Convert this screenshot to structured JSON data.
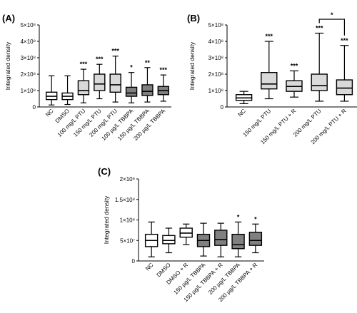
{
  "chart_data": [
    {
      "panel": "(A)",
      "type": "box",
      "ylabel": "Integrated density",
      "ylim": [
        0,
        500000000
      ],
      "yticks": [
        0,
        100000000,
        200000000,
        300000000,
        400000000,
        500000000
      ],
      "ytick_labels": [
        "0",
        "1×10⁸",
        "2×10⁸",
        "3×10⁸",
        "4×10⁸",
        "5×10⁸"
      ],
      "categories": [
        "NC",
        "DMSO",
        "100 mg/L PTU",
        "150 mg/L PTU",
        "200 mg/L PTU",
        "100 µg/L TBBPA",
        "150 µg/L TBBPA",
        "200 µg/L TBBPA"
      ],
      "boxes": [
        {
          "min": 12000000,
          "q1": 45000000,
          "median": 65000000,
          "q3": 90000000,
          "max": 190000000,
          "fill": "#ffffff",
          "sig": ""
        },
        {
          "min": 15000000,
          "q1": 45000000,
          "median": 65000000,
          "q3": 85000000,
          "max": 190000000,
          "fill": "#ffffff",
          "sig": ""
        },
        {
          "min": 25000000,
          "q1": 75000000,
          "median": 100000000,
          "q3": 160000000,
          "max": 230000000,
          "fill": "#d9d9d9",
          "sig": "***"
        },
        {
          "min": 50000000,
          "q1": 100000000,
          "median": 140000000,
          "q3": 200000000,
          "max": 260000000,
          "fill": "#d9d9d9",
          "sig": "***"
        },
        {
          "min": 30000000,
          "q1": 90000000,
          "median": 135000000,
          "q3": 200000000,
          "max": 310000000,
          "fill": "#d9d9d9",
          "sig": "***"
        },
        {
          "min": 25000000,
          "q1": 65000000,
          "median": 85000000,
          "q3": 120000000,
          "max": 210000000,
          "fill": "#808080",
          "sig": "*"
        },
        {
          "min": 30000000,
          "q1": 70000000,
          "median": 95000000,
          "q3": 135000000,
          "max": 240000000,
          "fill": "#808080",
          "sig": "**"
        },
        {
          "min": 35000000,
          "q1": 75000000,
          "median": 100000000,
          "q3": 125000000,
          "max": 195000000,
          "fill": "#808080",
          "sig": "***"
        }
      ]
    },
    {
      "panel": "(B)",
      "type": "box",
      "ylabel": "Integrated density",
      "ylim": [
        0,
        500000000
      ],
      "yticks": [
        0,
        100000000,
        200000000,
        300000000,
        400000000,
        500000000
      ],
      "ytick_labels": [
        "0",
        "1×10⁸",
        "2×10⁸",
        "3×10⁸",
        "4×10⁸",
        "5×10⁸"
      ],
      "categories": [
        "NC",
        "150 mg/L PTU",
        "150 mg/L PTU + R",
        "200 mg/L PTU",
        "200 mg/L PTU + R"
      ],
      "boxes": [
        {
          "min": 20000000,
          "q1": 40000000,
          "median": 55000000,
          "q3": 75000000,
          "max": 95000000,
          "fill": "#ffffff",
          "sig": ""
        },
        {
          "min": 50000000,
          "q1": 110000000,
          "median": 140000000,
          "q3": 210000000,
          "max": 400000000,
          "fill": "#d9d9d9",
          "sig": "***"
        },
        {
          "min": 60000000,
          "q1": 95000000,
          "median": 125000000,
          "q3": 160000000,
          "max": 220000000,
          "fill": "#d9d9d9",
          "sig": "***"
        },
        {
          "min": 35000000,
          "q1": 100000000,
          "median": 130000000,
          "q3": 200000000,
          "max": 450000000,
          "fill": "#d9d9d9",
          "sig": "***"
        },
        {
          "min": 35000000,
          "q1": 75000000,
          "median": 115000000,
          "q3": 165000000,
          "max": 375000000,
          "fill": "#d9d9d9",
          "sig": "***"
        }
      ],
      "bracket": {
        "from": 3,
        "to": 4,
        "label": "*"
      }
    },
    {
      "panel": "(C)",
      "type": "box",
      "ylabel": "Integrated density",
      "ylim": [
        0,
        200000000
      ],
      "yticks": [
        0,
        50000000,
        100000000,
        150000000,
        200000000
      ],
      "ytick_labels": [
        "0",
        "5×10⁷",
        "1×10⁸",
        "1.5×10⁸",
        "2×10⁸"
      ],
      "categories": [
        "NC",
        "DMSO",
        "DMSO + R",
        "150 µg/L TBBPA",
        "150 µg/L TBBPA + R",
        "200 µg/L TBBPA",
        "200 µg/L TBBPA + R"
      ],
      "boxes": [
        {
          "min": 10000000,
          "q1": 35000000,
          "median": 50000000,
          "q3": 65000000,
          "max": 95000000,
          "fill": "#ffffff",
          "sig": ""
        },
        {
          "min": 20000000,
          "q1": 42000000,
          "median": 50000000,
          "q3": 62000000,
          "max": 80000000,
          "fill": "#ffffff",
          "sig": ""
        },
        {
          "min": 40000000,
          "q1": 58000000,
          "median": 68000000,
          "q3": 80000000,
          "max": 90000000,
          "fill": "#ffffff",
          "sig": ""
        },
        {
          "min": 12000000,
          "q1": 35000000,
          "median": 50000000,
          "q3": 65000000,
          "max": 92000000,
          "fill": "#808080",
          "sig": ""
        },
        {
          "min": 10000000,
          "q1": 38000000,
          "median": 52000000,
          "q3": 75000000,
          "max": 92000000,
          "fill": "#808080",
          "sig": ""
        },
        {
          "min": 10000000,
          "q1": 30000000,
          "median": 40000000,
          "q3": 65000000,
          "max": 95000000,
          "fill": "#808080",
          "sig": "*"
        },
        {
          "min": 20000000,
          "q1": 38000000,
          "median": 50000000,
          "q3": 70000000,
          "max": 90000000,
          "fill": "#808080",
          "sig": "*"
        }
      ]
    }
  ]
}
